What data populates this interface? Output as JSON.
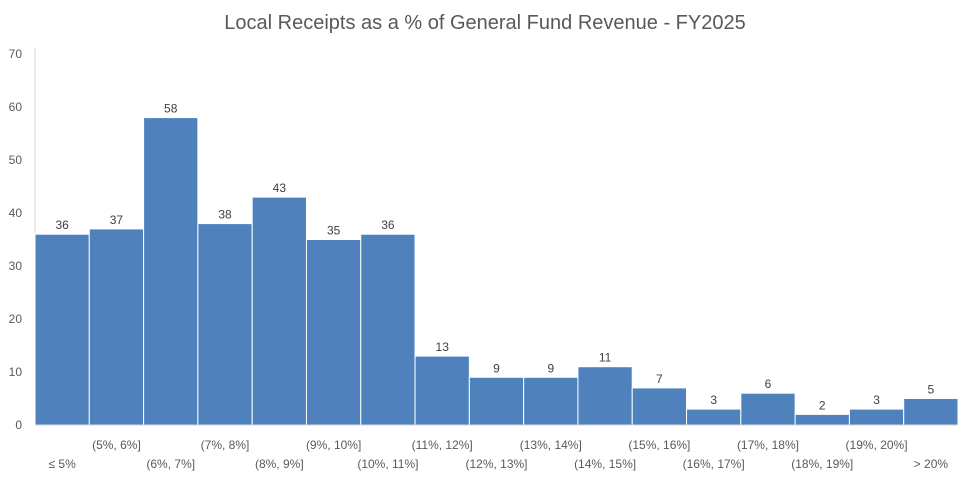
{
  "chart_data": {
    "type": "bar",
    "title": "Local Receipts as a % of General Fund Revenue - FY2025",
    "xlabel": "",
    "ylabel": "",
    "categories": [
      "≤ 5%",
      "(5%, 6%]",
      "(6%, 7%]",
      "(7%, 8%]",
      "(8%, 9%]",
      "(9%, 10%]",
      "(10%, 11%]",
      "(11%, 12%]",
      "(12%, 13%]",
      "(13%, 14%]",
      "(14%, 15%]",
      "(15%, 16%]",
      "(16%, 17%]",
      "(17%, 18%]",
      "(18%, 19%]",
      "(19%, 20%]",
      "> 20%"
    ],
    "values": [
      36,
      37,
      58,
      38,
      43,
      35,
      36,
      13,
      9,
      9,
      11,
      7,
      3,
      6,
      2,
      3,
      5
    ],
    "ylim": [
      0,
      70
    ],
    "yticks": [
      0,
      10,
      20,
      30,
      40,
      50,
      60,
      70
    ],
    "grid": false,
    "legend": "none",
    "bar_color": "#4F81BD",
    "bar_edge_color": "#FFFFFF"
  }
}
